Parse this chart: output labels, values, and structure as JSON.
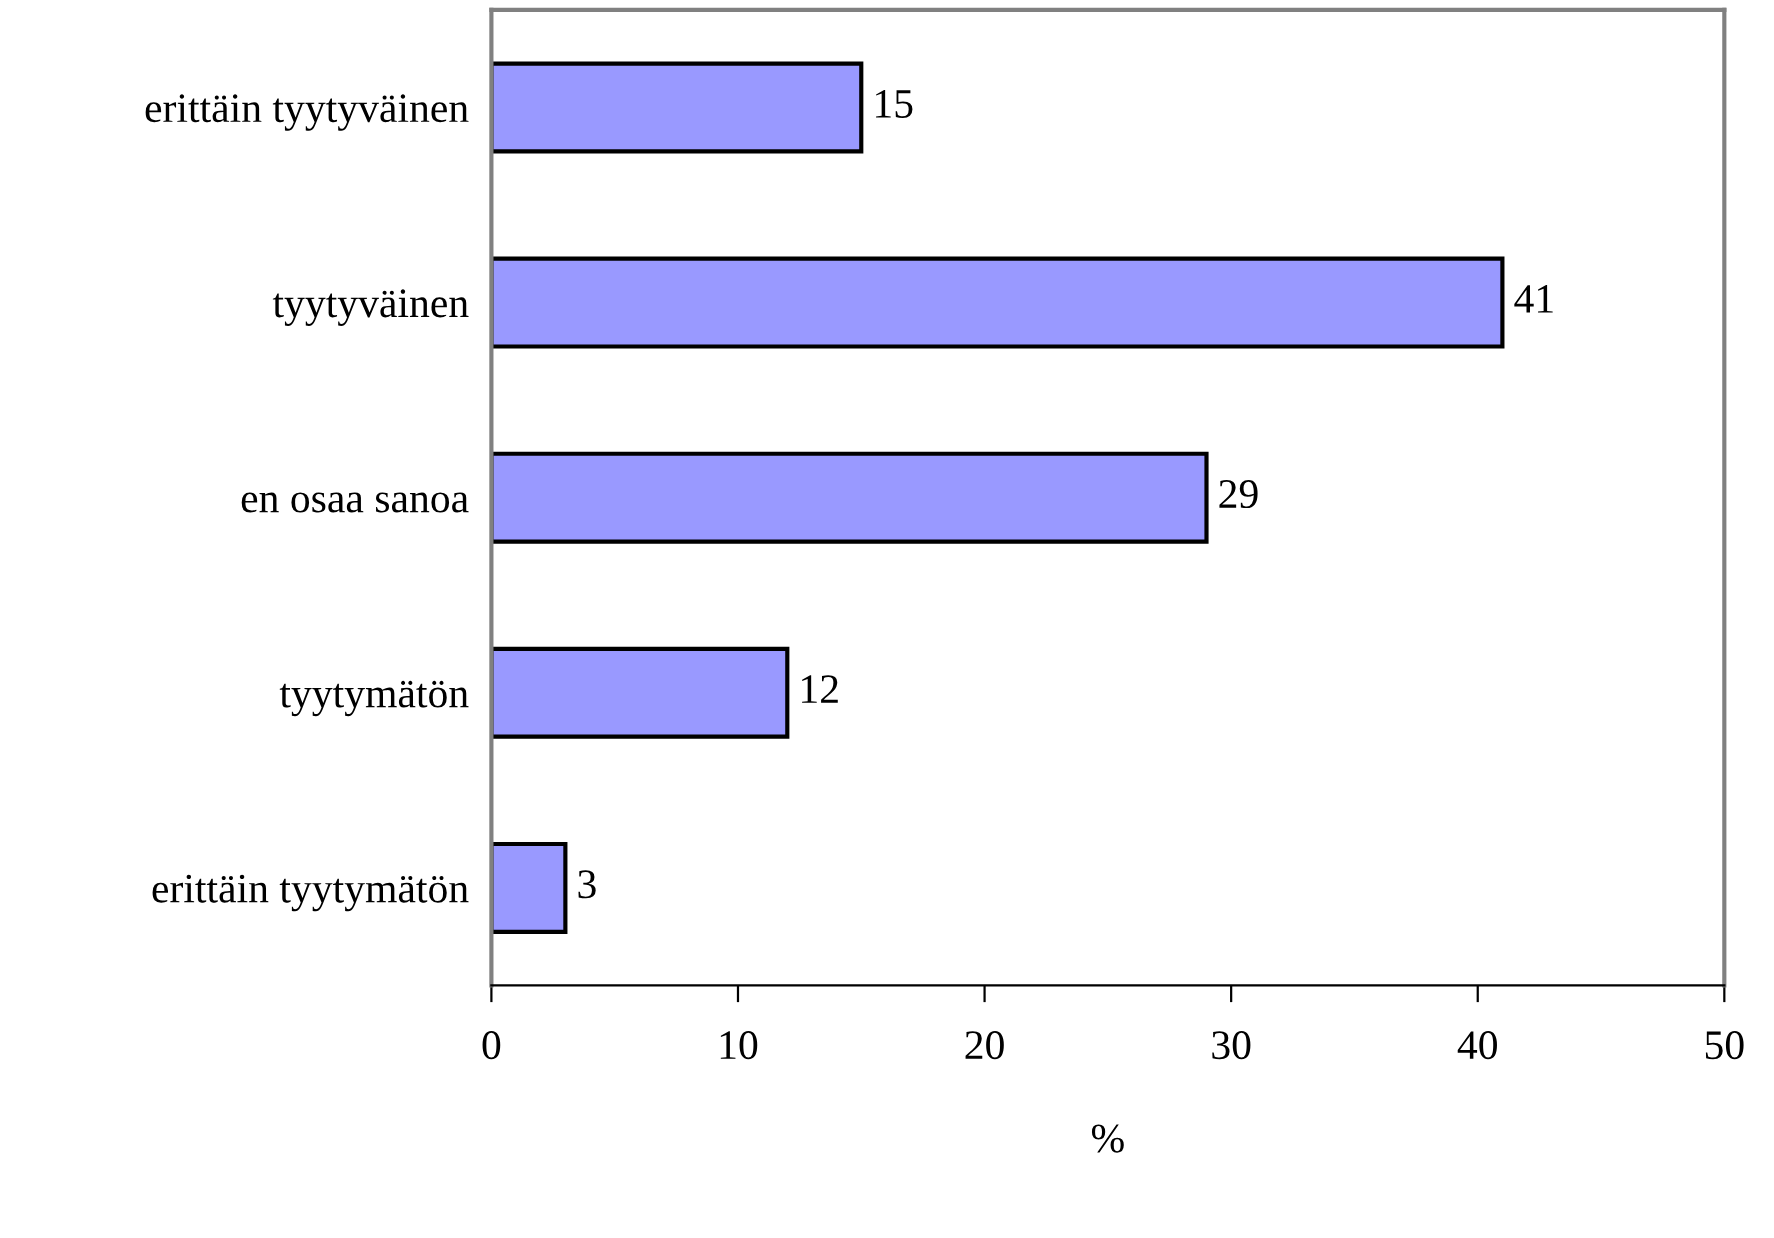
{
  "chart_data": {
    "type": "bar",
    "orientation": "horizontal",
    "xlabel": "%",
    "categories": [
      "erittäin tyytyväinen",
      "tyytyväinen",
      "en osaa sanoa",
      "tyytymätön",
      "erittäin tyytymätön"
    ],
    "values": [
      15,
      41,
      29,
      12,
      3
    ],
    "color": "#9999ff",
    "xlim": [
      0,
      50
    ],
    "xticks": [
      0,
      10,
      20,
      30,
      40,
      50
    ],
    "data_labels": true,
    "grid": false,
    "legend": false
  }
}
